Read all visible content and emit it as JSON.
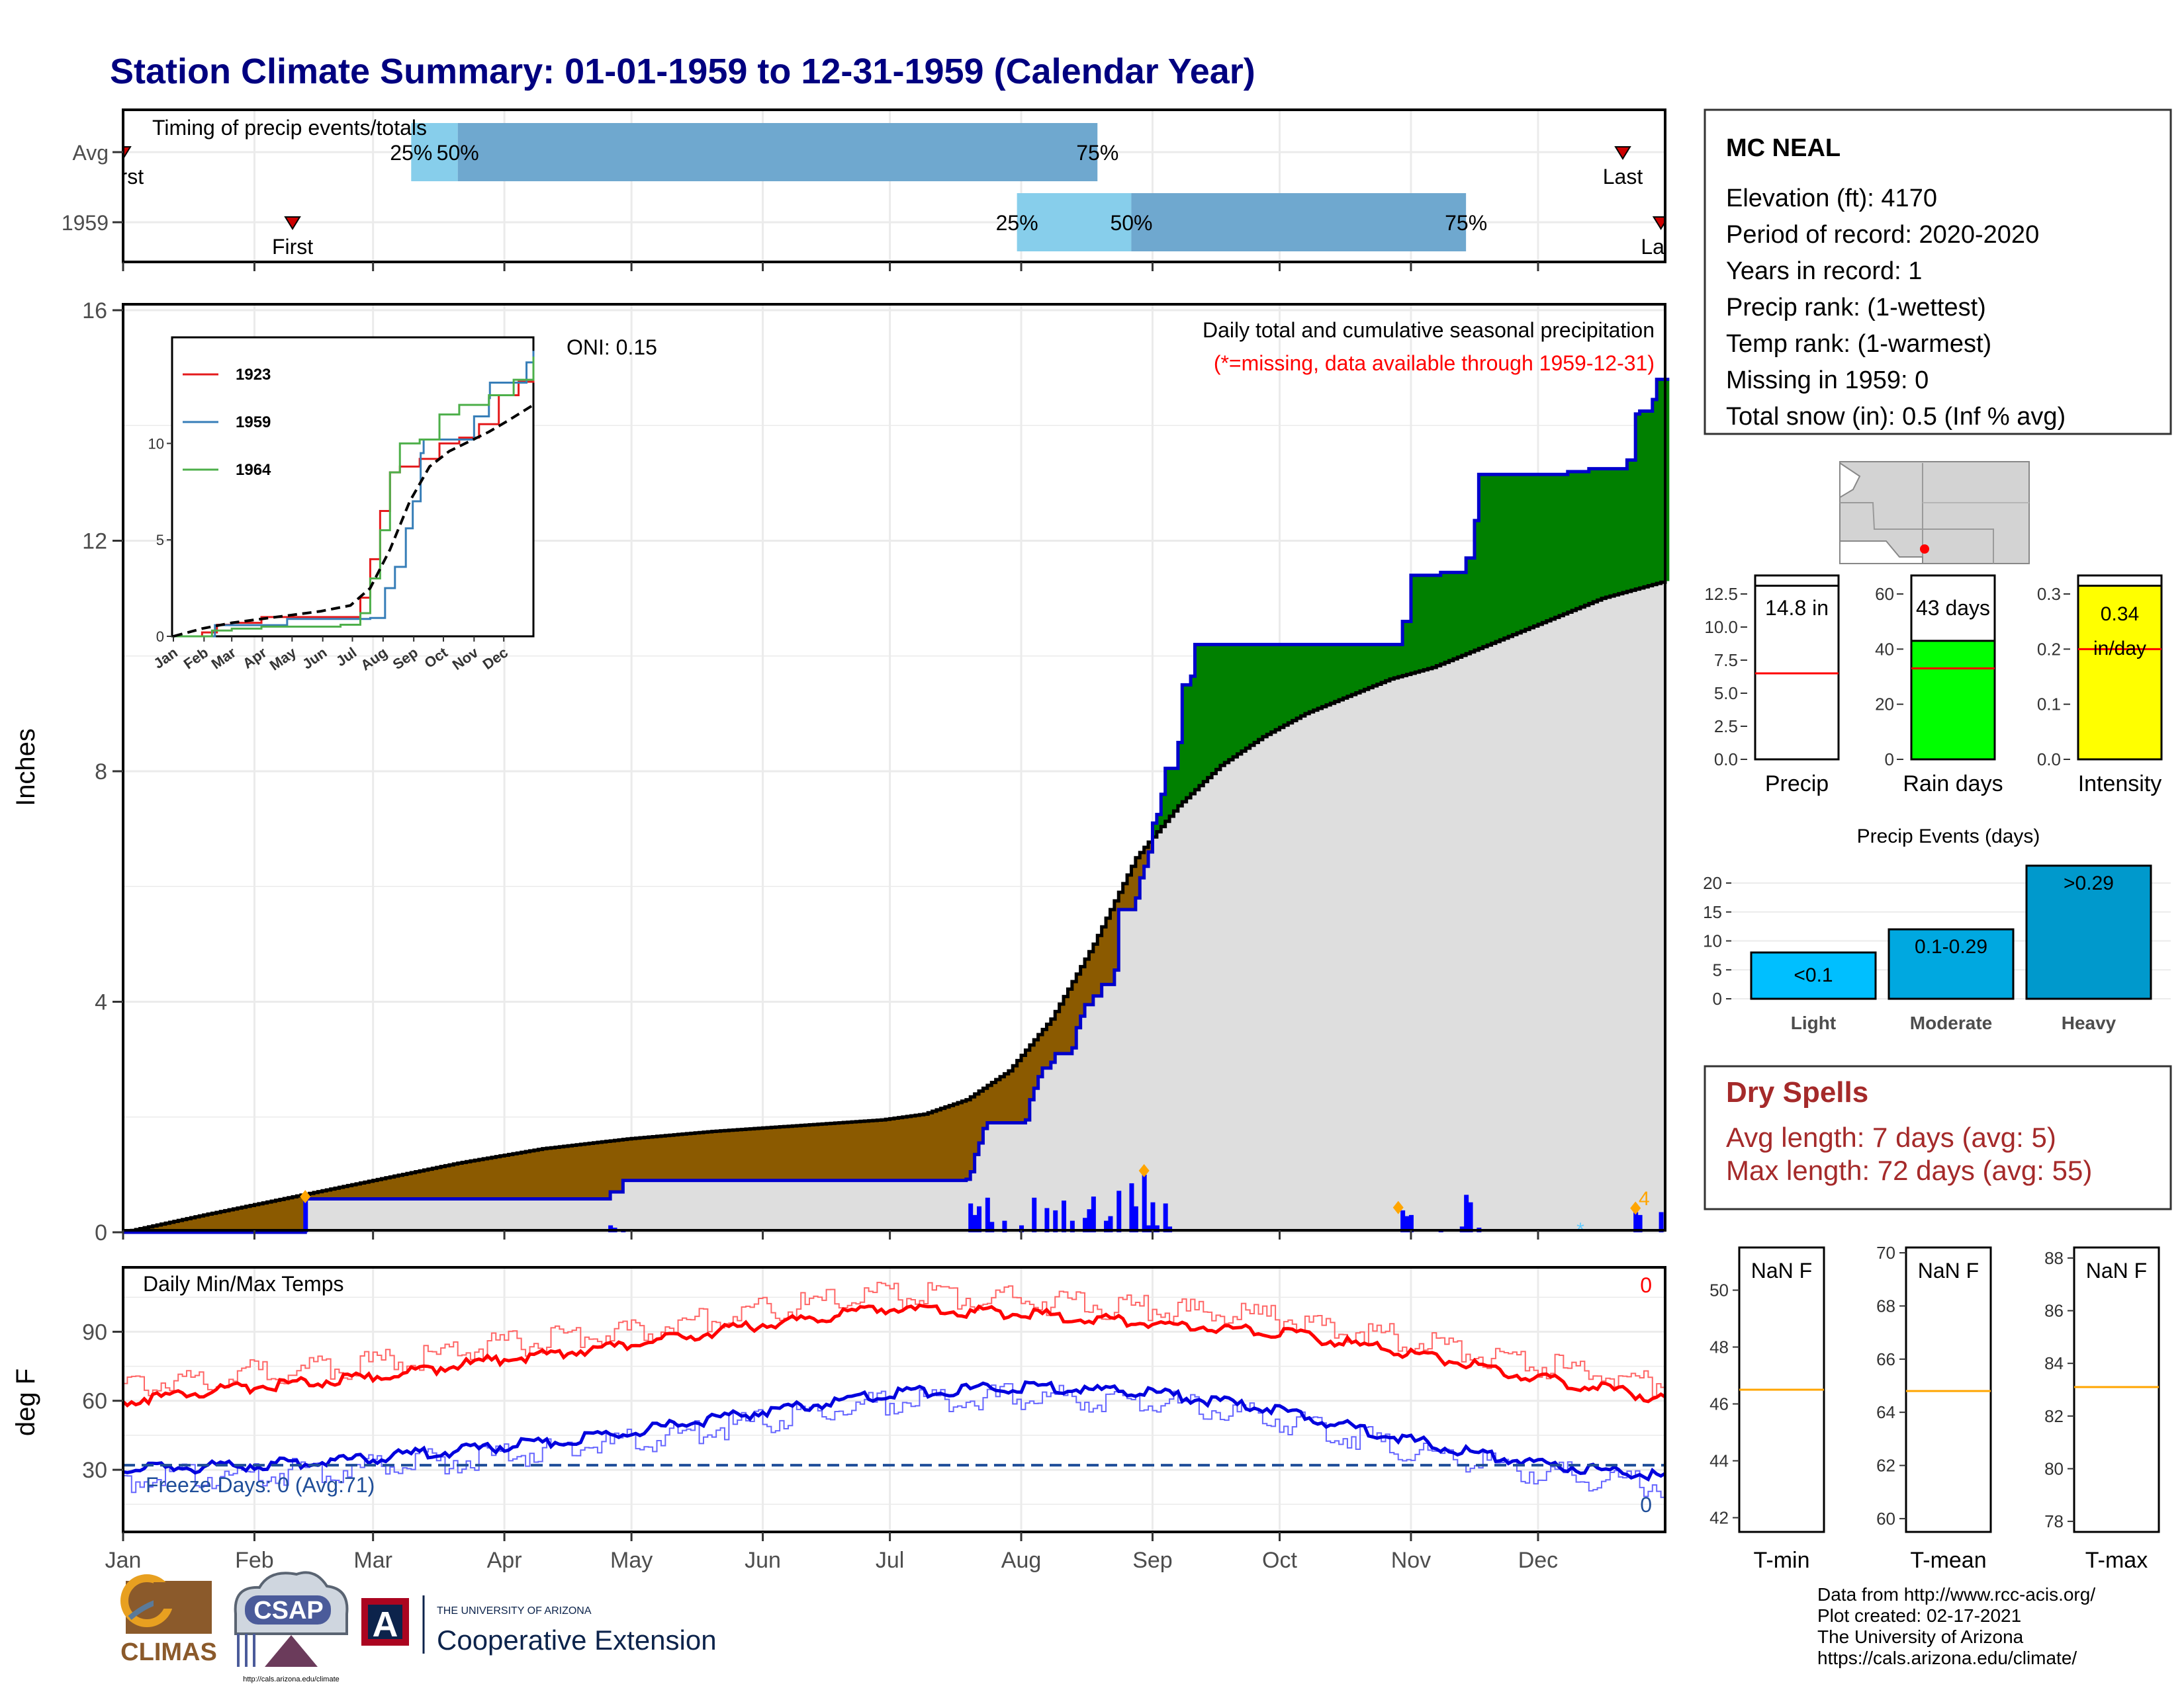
{
  "title": "Station Climate Summary: 01-01-1959 to 12-31-1959 (Calendar Year)",
  "colors": {
    "title": "#000080",
    "precip_avg_fill": "#8b5a00",
    "precip_above_fill": "#008000",
    "cumulative_line": "#0000cc",
    "normal_area": "#dedede",
    "daily_bar": "#0000ff",
    "tmax": "#ff0000",
    "tmin": "#0000dd",
    "dry_spells": "#a52a2a",
    "onset_marker": "#cc0000",
    "q25": "#87ceeb",
    "q50": "#6fa8cf",
    "rain_days": "#00ff00",
    "intensity": "#ffff00",
    "events_light": "#00bfff",
    "events_moderate": "#00a8e0",
    "events_heavy": "#0099cc",
    "normal_marker": "#ffa500"
  },
  "months": [
    "Jan",
    "Feb",
    "Mar",
    "Apr",
    "May",
    "Jun",
    "Jul",
    "Aug",
    "Sep",
    "Oct",
    "Nov",
    "Dec"
  ],
  "timing_panel": {
    "label": "Timing of precip events/totals",
    "rows": [
      {
        "name": "Avg",
        "first_doy": 1,
        "q25_doy": 69,
        "q50_doy": 80,
        "q75_doy": 231,
        "last_doy": 355,
        "labels": {
          "first": "First",
          "q25": "25%",
          "q50": "50%",
          "q75": "75%",
          "last": "Last"
        }
      },
      {
        "name": "1959",
        "first_doy": 41,
        "q25_doy": 212,
        "q50_doy": 239,
        "q75_doy": 318,
        "last_doy": 364,
        "labels": {
          "first": "First",
          "q25": "25%",
          "q50": "50%",
          "q75": "75%",
          "last": "Last"
        }
      }
    ]
  },
  "precip_panel": {
    "ylabel": "Inches",
    "yticks": [
      0,
      4,
      8,
      12,
      16
    ],
    "oni": "ONI: 0.15",
    "caption": "Daily total and cumulative seasonal precipitation",
    "missing_note": "(*=missing, data available through 1959-12-31)",
    "snow_marker_label": "4"
  },
  "inset": {
    "series": [
      {
        "name": "1923"
      },
      {
        "name": "1959"
      },
      {
        "name": "1964"
      }
    ],
    "months": [
      "Jan",
      "Feb",
      "Mar",
      "Apr",
      "May",
      "Jun",
      "Jul",
      "Aug",
      "Sep",
      "Oct",
      "Nov",
      "Dec"
    ],
    "yticks": [
      0,
      5,
      10
    ]
  },
  "temp_panel": {
    "label": "Daily Min/Max Temps",
    "ylabel": "deg F",
    "yticks": [
      30,
      60,
      90
    ],
    "freeze_label": "Freeze Days: 0 (Avg:71)",
    "count_top": "0",
    "count_bottom": "0"
  },
  "station": {
    "name": "MC NEAL",
    "lines": [
      "Elevation (ft): 4170",
      "Period of record: 2020-2020",
      "Years in record: 1",
      "Precip rank:  (1-wettest)",
      "Temp rank:  (1-warmest)",
      "Missing in 1959: 0",
      "Total snow (in): 0.5 (Inf % avg)"
    ]
  },
  "bar_panels": [
    {
      "xlabel": "Precip",
      "value": 14.8,
      "label": "14.8 in",
      "avg": 6.5,
      "ymax": 12.5,
      "yticks": [
        "0.0",
        "2.5",
        "5.0",
        "7.5",
        "10.0",
        "12.5"
      ]
    },
    {
      "xlabel": "Rain days",
      "value": 43,
      "label": "43 days",
      "avg": 33,
      "ymax": 60,
      "yticks": [
        "0",
        "20",
        "40",
        "60"
      ]
    },
    {
      "xlabel": "Intensity",
      "value": 0.34,
      "label": "0.34 in/day",
      "avg": 0.2,
      "ymax": 0.3,
      "yticks": [
        "0.0",
        "0.1",
        "0.2",
        "0.3"
      ]
    }
  ],
  "events": {
    "title": "Precip Events (days)",
    "yticks": [
      0,
      5,
      10,
      15,
      20
    ],
    "bars": [
      {
        "category": "Light",
        "value": 8,
        "label": "<0.1"
      },
      {
        "category": "Moderate",
        "value": 12,
        "label": "0.1-0.29"
      },
      {
        "category": "Heavy",
        "value": 23,
        "label": ">0.29"
      }
    ]
  },
  "dry_spells": {
    "title": "Dry Spells",
    "avg_line": "Avg length: 7 days (avg: 5)",
    "max_line": "Max length: 72 days (avg: 55)"
  },
  "temp_boxes": [
    {
      "xlabel": "T-min",
      "value_label": "NaN F",
      "yticks": [
        "42",
        "44",
        "46",
        "48",
        "50"
      ],
      "avg": 46.5,
      "range": [
        41.5,
        51.5
      ]
    },
    {
      "xlabel": "T-mean",
      "value_label": "NaN F",
      "yticks": [
        "60",
        "62",
        "64",
        "66",
        "68",
        "70"
      ],
      "avg": 64.8,
      "range": [
        59.5,
        70.2
      ]
    },
    {
      "xlabel": "T-max",
      "value_label": "NaN F",
      "yticks": [
        "78",
        "80",
        "82",
        "84",
        "86",
        "88"
      ],
      "avg": 83.1,
      "range": [
        77.6,
        88.4
      ]
    }
  ],
  "footer": {
    "lines": [
      "Data from http://www.rcc-acis.org/",
      "Plot created: 02-17-2021",
      "The University of Arizona",
      "https://cals.arizona.edu/climate/"
    ],
    "logos": {
      "climas": "CLIMAS",
      "csap": "CSAP",
      "csap_url": "http://cals.arizona.edu/climate",
      "ua_small": "THE UNIVERSITY OF ARIZONA",
      "ua_big": "Cooperative Extension",
      "ua_mark": "A"
    }
  },
  "chart_data": {
    "type": "area",
    "title": "Station Climate Summary: 01-01-1959 to 12-31-1959 (Calendar Year)",
    "ylabel": "Inches",
    "ylim": [
      0,
      16
    ],
    "xlim_doy": [
      1,
      365
    ],
    "series": [
      {
        "kind": "cumulative_observed",
        "points": [
          [
            1,
            0
          ],
          [
            43,
            0
          ],
          [
            44,
            0.58
          ],
          [
            115,
            0.58
          ],
          [
            116,
            0.7
          ],
          [
            119,
            0.9
          ],
          [
            200,
            0.92
          ],
          [
            201,
            1.05
          ],
          [
            202,
            1.35
          ],
          [
            203,
            1.55
          ],
          [
            204,
            1.8
          ],
          [
            205,
            1.9
          ],
          [
            214,
            1.95
          ],
          [
            215,
            2.3
          ],
          [
            216,
            2.5
          ],
          [
            217,
            2.7
          ],
          [
            218,
            2.85
          ],
          [
            220,
            2.95
          ],
          [
            221,
            3.1
          ],
          [
            225,
            3.2
          ],
          [
            226,
            3.55
          ],
          [
            227,
            3.75
          ],
          [
            228,
            3.95
          ],
          [
            230,
            4.1
          ],
          [
            232,
            4.3
          ],
          [
            235,
            4.55
          ],
          [
            236,
            5.6
          ],
          [
            240,
            5.8
          ],
          [
            241,
            6.15
          ],
          [
            242,
            6.35
          ],
          [
            243,
            6.6
          ],
          [
            244,
            7.1
          ],
          [
            245,
            7.25
          ],
          [
            246,
            7.6
          ],
          [
            247,
            8.05
          ],
          [
            250,
            8.5
          ],
          [
            251,
            9.5
          ],
          [
            253,
            9.65
          ],
          [
            254,
            10.2
          ],
          [
            302,
            10.2
          ],
          [
            303,
            10.6
          ],
          [
            305,
            11.4
          ],
          [
            312,
            11.45
          ],
          [
            318,
            11.7
          ],
          [
            320,
            12.35
          ],
          [
            321,
            13.15
          ],
          [
            342,
            13.2
          ],
          [
            347,
            13.25
          ],
          [
            356,
            13.4
          ],
          [
            358,
            14.2
          ],
          [
            359,
            14.25
          ],
          [
            362,
            14.45
          ],
          [
            363,
            14.8
          ],
          [
            365,
            14.8
          ]
        ]
      },
      {
        "kind": "cumulative_normal",
        "points": [
          [
            1,
            0
          ],
          [
            20,
            0.3
          ],
          [
            40,
            0.6
          ],
          [
            60,
            0.9
          ],
          [
            80,
            1.2
          ],
          [
            100,
            1.45
          ],
          [
            120,
            1.62
          ],
          [
            140,
            1.75
          ],
          [
            160,
            1.85
          ],
          [
            180,
            1.95
          ],
          [
            190,
            2.05
          ],
          [
            200,
            2.3
          ],
          [
            210,
            2.8
          ],
          [
            220,
            3.7
          ],
          [
            230,
            5.0
          ],
          [
            240,
            6.5
          ],
          [
            250,
            7.4
          ],
          [
            260,
            8.1
          ],
          [
            270,
            8.6
          ],
          [
            280,
            9.0
          ],
          [
            290,
            9.3
          ],
          [
            300,
            9.6
          ],
          [
            310,
            9.8
          ],
          [
            320,
            10.1
          ],
          [
            330,
            10.4
          ],
          [
            340,
            10.7
          ],
          [
            350,
            11.0
          ],
          [
            365,
            11.3
          ]
        ]
      },
      {
        "kind": "daily_precip",
        "points": [
          [
            44,
            0.55
          ],
          [
            116,
            0.12
          ],
          [
            117,
            0.08
          ],
          [
            119,
            0.05
          ],
          [
            201,
            0.5
          ],
          [
            202,
            0.3
          ],
          [
            203,
            0.45
          ],
          [
            205,
            0.6
          ],
          [
            206,
            0.18
          ],
          [
            209,
            0.2
          ],
          [
            213,
            0.12
          ],
          [
            216,
            0.6
          ],
          [
            219,
            0.42
          ],
          [
            221,
            0.38
          ],
          [
            223,
            0.55
          ],
          [
            225,
            0.2
          ],
          [
            228,
            0.25
          ],
          [
            229,
            0.4
          ],
          [
            230,
            0.62
          ],
          [
            233,
            0.2
          ],
          [
            234,
            0.28
          ],
          [
            236,
            0.72
          ],
          [
            239,
            0.85
          ],
          [
            240,
            0.45
          ],
          [
            242,
            1.0
          ],
          [
            243,
            0.12
          ],
          [
            244,
            0.52
          ],
          [
            245,
            0.12
          ],
          [
            247,
            0.5
          ],
          [
            248,
            0.1
          ],
          [
            303,
            0.38
          ],
          [
            304,
            0.28
          ],
          [
            305,
            0.3
          ],
          [
            312,
            0.05
          ],
          [
            317,
            0.1
          ],
          [
            318,
            0.65
          ],
          [
            319,
            0.52
          ],
          [
            321,
            0.08
          ],
          [
            358,
            0.35
          ],
          [
            359,
            0.3
          ],
          [
            364,
            0.35
          ]
        ]
      }
    ],
    "temperature": {
      "ylabel": "deg F",
      "tmax_avg": [
        [
          1,
          60
        ],
        [
          31,
          66
        ],
        [
          59,
          70
        ],
        [
          90,
          78
        ],
        [
          120,
          84
        ],
        [
          151,
          93
        ],
        [
          181,
          100
        ],
        [
          212,
          98
        ],
        [
          243,
          94
        ],
        [
          273,
          90
        ],
        [
          304,
          81
        ],
        [
          334,
          70
        ],
        [
          365,
          61
        ]
      ],
      "tmin_avg": [
        [
          1,
          30
        ],
        [
          31,
          32
        ],
        [
          59,
          35
        ],
        [
          90,
          40
        ],
        [
          120,
          46
        ],
        [
          151,
          55
        ],
        [
          181,
          63
        ],
        [
          212,
          66
        ],
        [
          243,
          64
        ],
        [
          273,
          56
        ],
        [
          304,
          43
        ],
        [
          334,
          33
        ],
        [
          365,
          27
        ]
      ]
    },
    "inset": {
      "series": [
        {
          "name": "1923",
          "points": [
            [
              1,
              0
            ],
            [
              30,
              0.2
            ],
            [
              45,
              0.6
            ],
            [
              60,
              0.7
            ],
            [
              90,
              1.0
            ],
            [
              150,
              1.0
            ],
            [
              180,
              1.0
            ],
            [
              190,
              2.0
            ],
            [
              200,
              4.0
            ],
            [
              210,
              6.5
            ],
            [
              220,
              8.5
            ],
            [
              230,
              8.8
            ],
            [
              250,
              9.2
            ],
            [
              270,
              10.0
            ],
            [
              290,
              10.3
            ],
            [
              310,
              11.0
            ],
            [
              330,
              12.5
            ],
            [
              350,
              13.2
            ],
            [
              365,
              14.0
            ]
          ]
        },
        {
          "name": "1959",
          "points": [
            [
              1,
              0
            ],
            [
              43,
              0.58
            ],
            [
              116,
              0.9
            ],
            [
              200,
              0.95
            ],
            [
              215,
              2.5
            ],
            [
              225,
              3.6
            ],
            [
              236,
              5.6
            ],
            [
              243,
              7.0
            ],
            [
              251,
              9.5
            ],
            [
              254,
              10.2
            ],
            [
              302,
              10.2
            ],
            [
              305,
              11.4
            ],
            [
              320,
              12.35
            ],
            [
              321,
              13.15
            ],
            [
              358,
              14.2
            ],
            [
              365,
              14.8
            ]
          ]
        },
        {
          "name": "1964",
          "points": [
            [
              1,
              0
            ],
            [
              40,
              0.3
            ],
            [
              60,
              0.4
            ],
            [
              90,
              0.5
            ],
            [
              170,
              0.6
            ],
            [
              190,
              1.2
            ],
            [
              200,
              3.0
            ],
            [
              210,
              5.5
            ],
            [
              220,
              8.5
            ],
            [
              230,
              10.0
            ],
            [
              250,
              10.2
            ],
            [
              270,
              11.5
            ],
            [
              290,
              12.0
            ],
            [
              320,
              12.5
            ],
            [
              345,
              13.3
            ],
            [
              365,
              14.5
            ]
          ]
        },
        {
          "name": "average",
          "points": [
            [
              1,
              0
            ],
            [
              30,
              0.4
            ],
            [
              60,
              0.7
            ],
            [
              90,
              0.9
            ],
            [
              120,
              1.1
            ],
            [
              150,
              1.3
            ],
            [
              180,
              1.6
            ],
            [
              200,
              2.5
            ],
            [
              220,
              4.5
            ],
            [
              240,
              7.0
            ],
            [
              260,
              8.8
            ],
            [
              280,
              9.6
            ],
            [
              300,
              10.1
            ],
            [
              320,
              10.6
            ],
            [
              340,
              11.2
            ],
            [
              365,
              12.0
            ]
          ]
        }
      ]
    }
  }
}
